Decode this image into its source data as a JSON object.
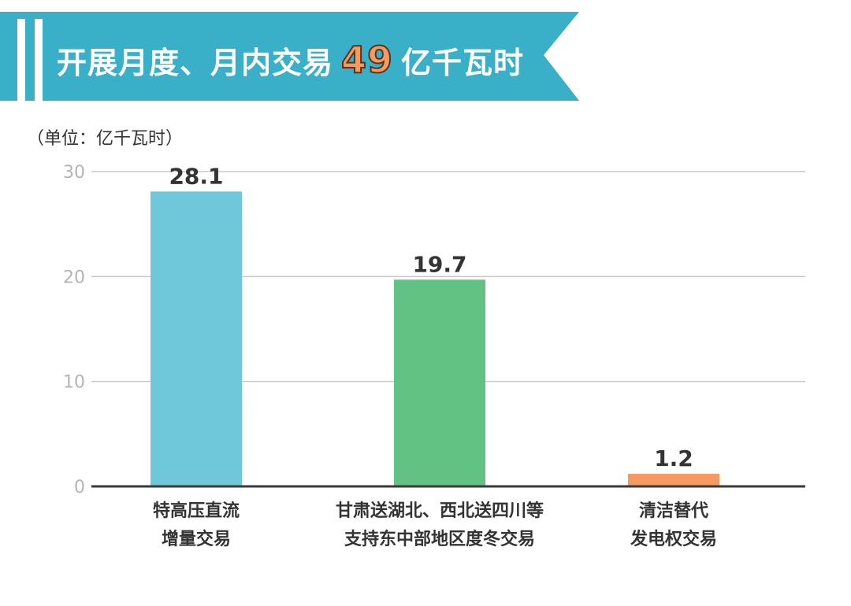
{
  "header": {
    "title_before": "开展月度、月内交易",
    "title_number": "49",
    "title_after": "亿千瓦时",
    "banner_color": "#3aafc8"
  },
  "unit_label": "（单位：亿千瓦时）",
  "chart_data": {
    "type": "bar",
    "categories": [
      [
        "特高压直流",
        "增量交易"
      ],
      [
        "甘肃送湖北、西北送四川等",
        "支持东中部地区度冬交易"
      ],
      [
        "清洁替代",
        "发电权交易"
      ]
    ],
    "values": [
      28.1,
      19.7,
      1.2
    ],
    "value_labels": [
      "28.1",
      "19.7",
      "1.2"
    ],
    "bar_colors": [
      "#6ec8da",
      "#61c283",
      "#f79a62"
    ],
    "ylim": [
      0,
      30
    ],
    "yticks": [
      0,
      10,
      20,
      30
    ],
    "grid": true
  }
}
